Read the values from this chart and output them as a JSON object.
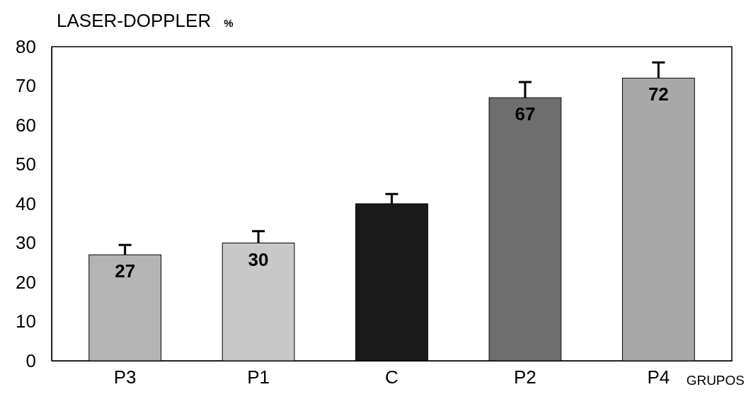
{
  "chart_data": {
    "type": "bar",
    "title": "LASER-DOPPLER",
    "ylabel": "%",
    "xlabel": "GRUPOS",
    "categories": [
      "P3",
      "P1",
      "C",
      "P2",
      "P4"
    ],
    "values": [
      27,
      30,
      40,
      67,
      72
    ],
    "colors": [
      "#b4b4b4",
      "#c8c8c8",
      "#1a1a1a",
      "#6e6e6e",
      "#a8a8a8"
    ],
    "errors": [
      [
        27,
        29.5
      ],
      [
        30,
        33
      ],
      [
        40,
        42.5
      ],
      [
        67,
        71
      ],
      [
        72,
        76
      ]
    ],
    "value_labels": [
      "27",
      "30",
      null,
      "67",
      "72"
    ],
    "ylim": [
      0,
      80
    ],
    "yticks": [
      0,
      10,
      20,
      30,
      40,
      50,
      60,
      70,
      80
    ],
    "grid": false
  }
}
